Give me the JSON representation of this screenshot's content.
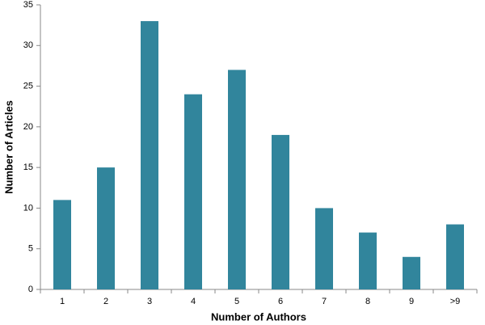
{
  "chart_data": {
    "type": "bar",
    "x_label": "Number of Authors",
    "y_label": "Number of Articles",
    "categories": [
      "1",
      "2",
      "3",
      "4",
      "5",
      "6",
      "7",
      "8",
      "9",
      ">9"
    ],
    "values": [
      11,
      15,
      33,
      24,
      27,
      19,
      10,
      7,
      4,
      8
    ],
    "color": "#31859c",
    "ylim": [
      0,
      35
    ],
    "yticks": [
      0,
      5,
      10,
      15,
      20,
      25,
      30,
      35
    ],
    "grid": false
  }
}
